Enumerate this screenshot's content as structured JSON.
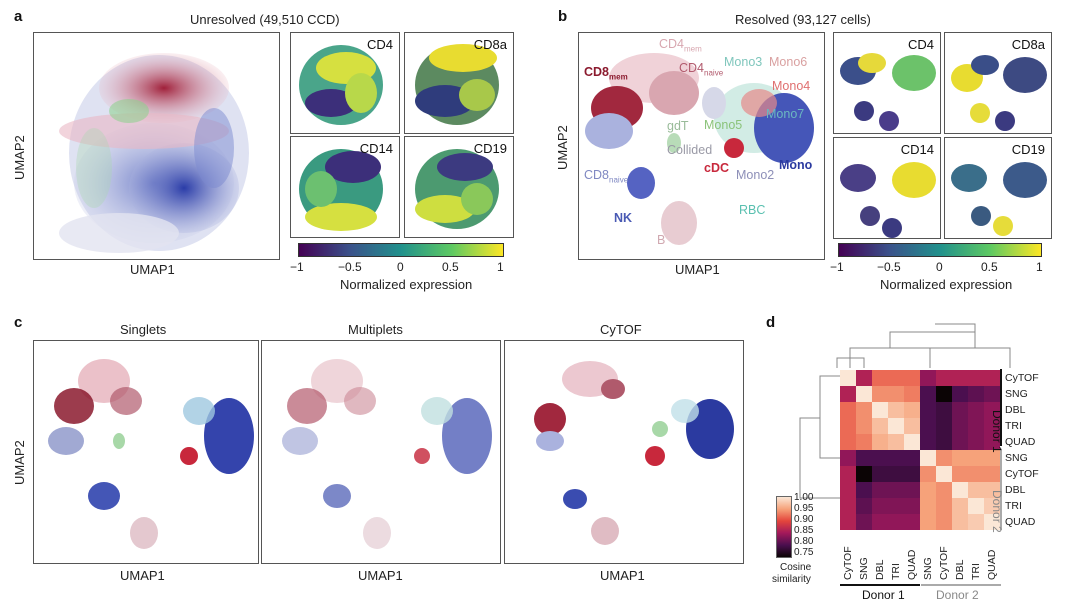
{
  "panel_labels": {
    "a": "a",
    "b": "b",
    "c": "c",
    "d": "d"
  },
  "a": {
    "title": "Unresolved (49,510 CCD)",
    "xlabel": "UMAP1",
    "ylabel": "UMAP2",
    "minis": [
      "CD4",
      "CD8a",
      "CD14",
      "CD19"
    ],
    "colorbar": {
      "ticks": [
        "−1",
        "−0.5",
        "0",
        "0.5",
        "1"
      ],
      "label": "Normalized expression"
    }
  },
  "b": {
    "title": "Resolved (93,127 cells)",
    "xlabel": "UMAP1",
    "ylabel": "UMAP2",
    "minis": [
      "CD4",
      "CD8a",
      "CD14",
      "CD19"
    ],
    "colorbar": {
      "ticks": [
        "−1",
        "−0.5",
        "0",
        "0.5",
        "1"
      ],
      "label": "Normalized expression"
    },
    "clusters": [
      {
        "name": "CD4",
        "sub": "mem",
        "color": "#d8a7b0"
      },
      {
        "name": "CD8",
        "sub": "mem",
        "color": "#8b1a2e"
      },
      {
        "name": "CD4",
        "sub": "naive",
        "color": "#b25b6e"
      },
      {
        "name": "Mono3",
        "sub": "",
        "color": "#7fc6bc"
      },
      {
        "name": "Mono6",
        "sub": "",
        "color": "#d9a0a0"
      },
      {
        "name": "Mono4",
        "sub": "",
        "color": "#e07070"
      },
      {
        "name": "Mono7",
        "sub": "",
        "color": "#6bb8c0"
      },
      {
        "name": "gdT",
        "sub": "",
        "color": "#99bb99"
      },
      {
        "name": "Mono5",
        "sub": "",
        "color": "#8bc37a"
      },
      {
        "name": "Collided",
        "sub": "",
        "color": "#9a9aa6"
      },
      {
        "name": "cDC",
        "sub": "",
        "color": "#c8283c"
      },
      {
        "name": "Mono2",
        "sub": "",
        "color": "#8d8fb8"
      },
      {
        "name": "Mono",
        "sub": "",
        "color": "#2b3aa0"
      },
      {
        "name": "CD8",
        "sub": "naive",
        "color": "#7f88c2"
      },
      {
        "name": "NK",
        "sub": "",
        "color": "#4a5ab4"
      },
      {
        "name": "RBC",
        "sub": "",
        "color": "#5ac0b0"
      },
      {
        "name": "B",
        "sub": "",
        "color": "#d0a8b0"
      }
    ]
  },
  "c": {
    "titles": [
      "Singlets",
      "Multiplets",
      "CyTOF"
    ],
    "xlabel": "UMAP1",
    "ylabel": "UMAP2"
  },
  "d": {
    "rows": [
      "CyTOF",
      "SNG",
      "DBL",
      "TRI",
      "QUAD",
      "SNG",
      "CyTOF",
      "DBL",
      "TRI",
      "QUAD"
    ],
    "cols": [
      "CyTOF",
      "SNG",
      "DBL",
      "TRI",
      "QUAD",
      "SNG",
      "CyTOF",
      "DBL",
      "TRI",
      "QUAD"
    ],
    "donor1": "Donor 1",
    "donor2": "Donor 2",
    "cbar_ticks": [
      "1.00",
      "0.95",
      "0.90",
      "0.85",
      "0.80",
      "0.75"
    ],
    "cbar_label1": "Cosine",
    "cbar_label2": "similarity",
    "matrix": [
      [
        1.0,
        0.86,
        0.92,
        0.92,
        0.92,
        0.84,
        0.86,
        0.86,
        0.86,
        0.86
      ],
      [
        0.86,
        1.0,
        0.94,
        0.94,
        0.93,
        0.8,
        0.75,
        0.8,
        0.81,
        0.82
      ],
      [
        0.92,
        0.94,
        1.0,
        0.97,
        0.96,
        0.8,
        0.79,
        0.82,
        0.83,
        0.84
      ],
      [
        0.92,
        0.94,
        0.97,
        1.0,
        0.97,
        0.8,
        0.79,
        0.82,
        0.83,
        0.84
      ],
      [
        0.92,
        0.93,
        0.96,
        0.97,
        1.0,
        0.8,
        0.79,
        0.82,
        0.83,
        0.84
      ],
      [
        0.84,
        0.8,
        0.8,
        0.8,
        0.8,
        1.0,
        0.94,
        0.95,
        0.95,
        0.95
      ],
      [
        0.86,
        0.75,
        0.79,
        0.79,
        0.79,
        0.94,
        1.0,
        0.94,
        0.94,
        0.94
      ],
      [
        0.86,
        0.8,
        0.82,
        0.82,
        0.82,
        0.95,
        0.94,
        1.0,
        0.97,
        0.97
      ],
      [
        0.86,
        0.81,
        0.83,
        0.83,
        0.83,
        0.95,
        0.94,
        0.97,
        1.0,
        0.98
      ],
      [
        0.86,
        0.82,
        0.84,
        0.84,
        0.84,
        0.95,
        0.94,
        0.97,
        0.98,
        1.0
      ]
    ]
  }
}
